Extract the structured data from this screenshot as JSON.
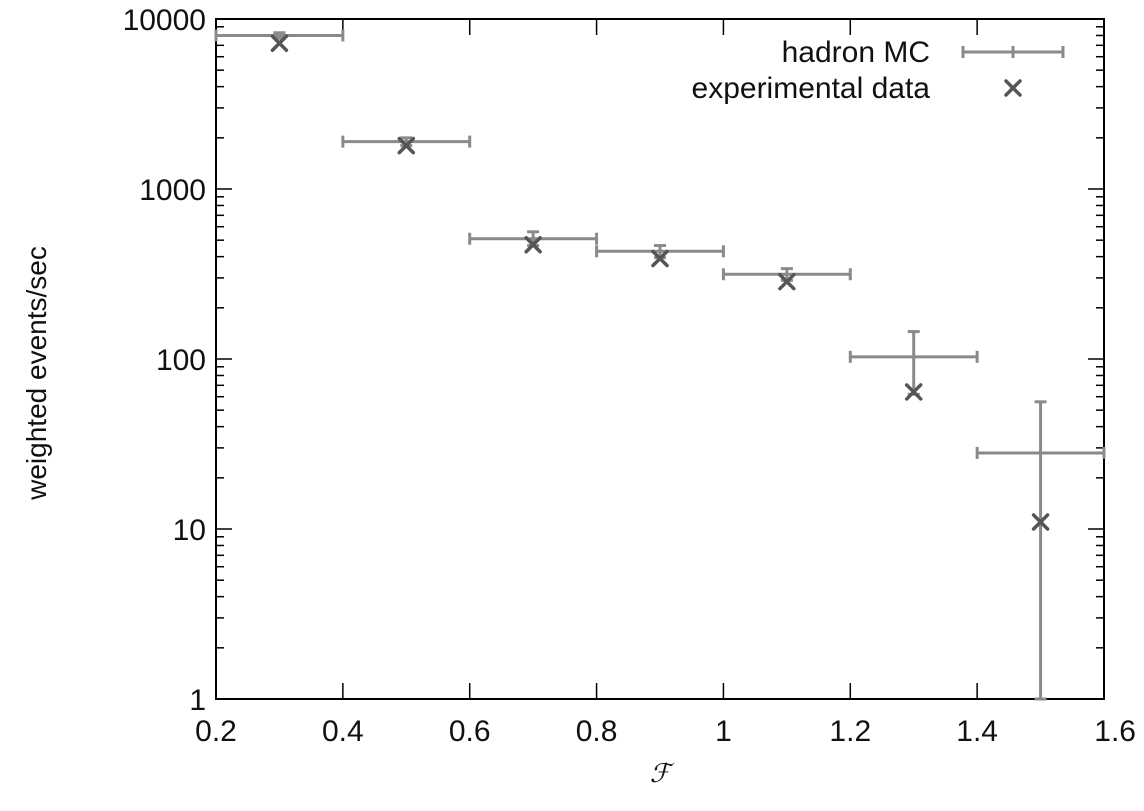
{
  "chart_data": {
    "type": "scatter",
    "title": "",
    "xlabel": "ℱ",
    "ylabel": "weighted events/sec",
    "xlim": [
      0.2,
      1.6
    ],
    "ylim": [
      1,
      10000
    ],
    "yscale": "log",
    "grid": false,
    "legend_position": "top-right",
    "x_ticks": [
      0.2,
      0.4,
      0.6,
      0.8,
      1.0,
      1.2,
      1.4,
      1.6
    ],
    "x_tick_labels": [
      "0.2",
      "0.4",
      "0.6",
      "0.8",
      "1",
      "1.2",
      "1.4",
      "1.6"
    ],
    "y_ticks": [
      1,
      10,
      100,
      1000,
      10000
    ],
    "y_tick_labels": [
      "1",
      "10",
      "100",
      "1000",
      "10000"
    ],
    "series": [
      {
        "name": "hadron MC",
        "style": "errorbars",
        "color": "#8a8a8a",
        "points": [
          {
            "x": 0.3,
            "xlo": 0.2,
            "xhi": 0.4,
            "y": 8000,
            "ylo": 7700,
            "yhi": 8300
          },
          {
            "x": 0.5,
            "xlo": 0.4,
            "xhi": 0.6,
            "y": 1900,
            "ylo": 1800,
            "yhi": 2000
          },
          {
            "x": 0.7,
            "xlo": 0.6,
            "xhi": 0.8,
            "y": 510,
            "ylo": 465,
            "yhi": 560
          },
          {
            "x": 0.9,
            "xlo": 0.8,
            "xhi": 1.0,
            "y": 430,
            "ylo": 395,
            "yhi": 465
          },
          {
            "x": 1.1,
            "xlo": 1.0,
            "xhi": 1.2,
            "y": 315,
            "ylo": 290,
            "yhi": 340
          },
          {
            "x": 1.3,
            "xlo": 1.2,
            "xhi": 1.4,
            "y": 103,
            "ylo": 62,
            "yhi": 145
          },
          {
            "x": 1.5,
            "xlo": 1.4,
            "xhi": 1.6,
            "y": 28,
            "ylo": 1,
            "yhi": 56
          }
        ]
      },
      {
        "name": "experimental data",
        "style": "cross",
        "color": "#555555",
        "points": [
          {
            "x": 0.3,
            "y": 7200
          },
          {
            "x": 0.5,
            "y": 1800
          },
          {
            "x": 0.7,
            "y": 470
          },
          {
            "x": 0.9,
            "y": 390
          },
          {
            "x": 1.1,
            "y": 285
          },
          {
            "x": 1.3,
            "y": 64
          },
          {
            "x": 1.5,
            "y": 11
          }
        ]
      }
    ]
  }
}
